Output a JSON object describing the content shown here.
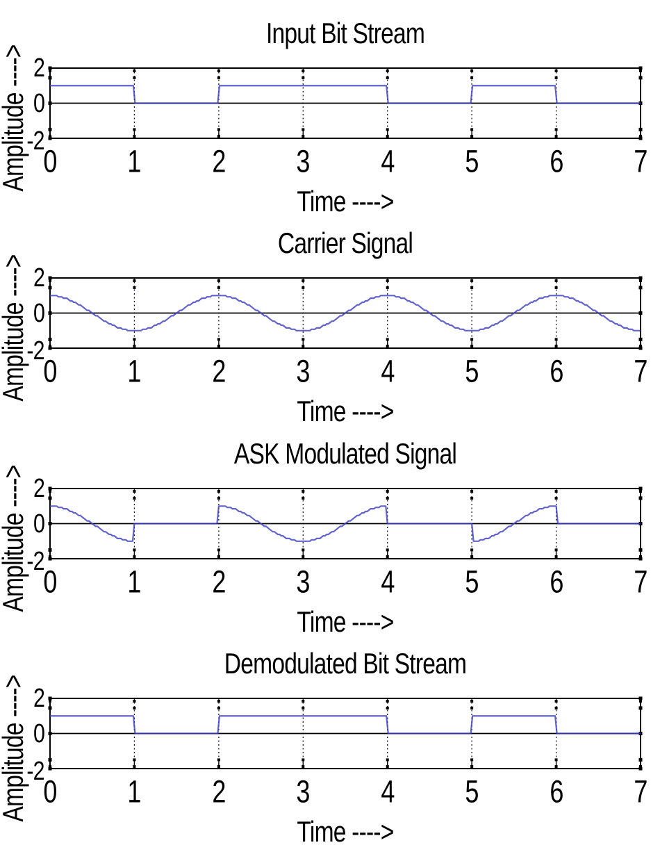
{
  "figure": {
    "background": "#ffffff",
    "line_color": "#4040c3",
    "grid_color": "#14142e",
    "axis_color": "#000000",
    "tick_color": "#000000"
  },
  "chart_data": [
    {
      "type": "line",
      "title": "Input Bit Stream",
      "xlabel": "Time ---->",
      "ylabel": "Amplitude ---->",
      "xlim": [
        0,
        7
      ],
      "ylim": [
        -2,
        2
      ],
      "xticks": [
        0,
        1,
        2,
        3,
        4,
        5,
        6,
        7
      ],
      "yticks": [
        2,
        0,
        -2
      ],
      "xtick_labels": [
        "0",
        "1",
        "2",
        "3",
        "4",
        "5",
        "6",
        "7"
      ],
      "ytick_labels": [
        "2",
        "0",
        "-2"
      ],
      "grid": true,
      "signal": {
        "kind": "bits",
        "bits": [
          1,
          0,
          1,
          1,
          0,
          1,
          0
        ],
        "high": 1,
        "low": 0
      }
    },
    {
      "type": "line",
      "title": "Carrier Signal",
      "xlabel": "Time ---->",
      "ylabel": "Amplitude ---->",
      "xlim": [
        0,
        7
      ],
      "ylim": [
        -2,
        2
      ],
      "xticks": [
        0,
        1,
        2,
        3,
        4,
        5,
        6,
        7
      ],
      "yticks": [
        2,
        0,
        -2
      ],
      "xtick_labels": [
        "0",
        "1",
        "2",
        "3",
        "4",
        "5",
        "6",
        "7"
      ],
      "ytick_labels": [
        "2",
        "0",
        "-2"
      ],
      "grid": true,
      "signal": {
        "kind": "carrier",
        "waveform": "cos",
        "amplitude": 1,
        "period": 2
      }
    },
    {
      "type": "line",
      "title": "ASK Modulated Signal",
      "xlabel": "Time ---->",
      "ylabel": "Amplitude ---->",
      "xlim": [
        0,
        7
      ],
      "ylim": [
        -2,
        2
      ],
      "xticks": [
        0,
        1,
        2,
        3,
        4,
        5,
        6,
        7
      ],
      "yticks": [
        2,
        0,
        -2
      ],
      "xtick_labels": [
        "0",
        "1",
        "2",
        "3",
        "4",
        "5",
        "6",
        "7"
      ],
      "ytick_labels": [
        "2",
        "0",
        "-2"
      ],
      "grid": true,
      "signal": {
        "kind": "ask",
        "definition": "bits x carrier",
        "bits": [
          1,
          0,
          1,
          1,
          0,
          1,
          0
        ],
        "carrier": {
          "waveform": "cos",
          "amplitude": 1,
          "period": 2
        }
      }
    },
    {
      "type": "line",
      "title": "Demodulated Bit Stream",
      "xlabel": "Time ---->",
      "ylabel": "Amplitude ---->",
      "xlim": [
        0,
        7
      ],
      "ylim": [
        -2,
        2
      ],
      "xticks": [
        0,
        1,
        2,
        3,
        4,
        5,
        6,
        7
      ],
      "yticks": [
        2,
        0,
        -2
      ],
      "xtick_labels": [
        "0",
        "1",
        "2",
        "3",
        "4",
        "5",
        "6",
        "7"
      ],
      "ytick_labels": [
        "2",
        "0",
        "-2"
      ],
      "grid": true,
      "signal": {
        "kind": "bits",
        "bits": [
          1,
          0,
          1,
          1,
          0,
          1,
          0
        ],
        "high": 1,
        "low": 0
      }
    }
  ]
}
